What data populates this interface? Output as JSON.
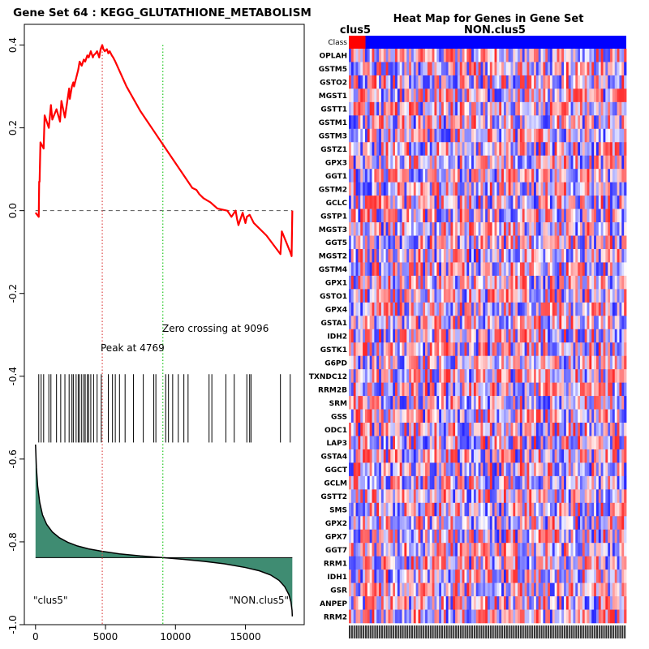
{
  "chart_data": [
    {
      "type": "line",
      "panel": "enrichment-plot",
      "title": "Gene Set  64 : KEGG_GLUTATHIONE_METABOLISM",
      "xlabel": "",
      "ylabel": "",
      "xlim": [
        -800,
        19200
      ],
      "ylim": [
        -1.0,
        0.45
      ],
      "x_ticks": [
        0,
        5000,
        10000,
        15000
      ],
      "x_tick_labels": [
        "0",
        "5000",
        "10000",
        "15000"
      ],
      "y_ticks": [
        0.4,
        0.2,
        0.0,
        -0.2,
        -0.4,
        -0.6,
        -0.8,
        -1.0
      ],
      "y_tick_labels": [
        "0.4",
        "0.2",
        "0.0",
        "-0.2",
        "-0.4",
        "-0.6",
        "-0.8",
        "-1.0"
      ],
      "es_curve": {
        "color": "#ff0000",
        "x": [
          0,
          230,
          260,
          290,
          350,
          580,
          650,
          950,
          1100,
          1200,
          1500,
          1750,
          1850,
          2100,
          2400,
          2450,
          2600,
          2700,
          2750,
          2900,
          3050,
          3150,
          3300,
          3450,
          3550,
          3700,
          3800,
          3950,
          4100,
          4150,
          4300,
          4400,
          4550,
          4650,
          4769,
          4850,
          4950,
          5100,
          5200,
          5300,
          5450,
          5550,
          5700,
          6500,
          7500,
          8500,
          9096,
          10000,
          11000,
          11200,
          11500,
          11700,
          12000,
          12500,
          13000,
          13700,
          14000,
          14300,
          14400,
          14500,
          14800,
          15000,
          15100,
          15300,
          15600,
          16500,
          17500,
          17600,
          18200,
          18300,
          18350
        ],
        "y": [
          -0.005,
          -0.015,
          0.07,
          0.07,
          0.165,
          0.15,
          0.23,
          0.2,
          0.255,
          0.22,
          0.245,
          0.215,
          0.265,
          0.225,
          0.295,
          0.27,
          0.3,
          0.31,
          0.3,
          0.32,
          0.34,
          0.36,
          0.35,
          0.365,
          0.36,
          0.375,
          0.37,
          0.385,
          0.37,
          0.375,
          0.38,
          0.385,
          0.37,
          0.39,
          0.4,
          0.39,
          0.385,
          0.39,
          0.38,
          0.385,
          0.375,
          0.37,
          0.36,
          0.3,
          0.24,
          0.19,
          0.16,
          0.115,
          0.065,
          0.055,
          0.05,
          0.04,
          0.03,
          0.02,
          0.005,
          0.0,
          -0.015,
          0.0,
          -0.02,
          -0.035,
          -0.005,
          -0.03,
          -0.015,
          -0.01,
          -0.03,
          -0.06,
          -0.105,
          -0.05,
          -0.1,
          -0.11,
          0.0
        ]
      },
      "zero_line": {
        "y": 0.0,
        "color": "#555555"
      },
      "peak": {
        "x": 4769,
        "label": "Peak at 4769",
        "color": "#e05555"
      },
      "zero_crossing": {
        "x": 9096,
        "label": "Zero crossing at 9096",
        "color": "#33cc33"
      },
      "hits": {
        "y_range": [
          -0.56,
          -0.395
        ],
        "x": [
          230,
          400,
          580,
          950,
          1100,
          1500,
          1800,
          2100,
          2400,
          2600,
          2700,
          2900,
          3050,
          3150,
          3300,
          3450,
          3550,
          3700,
          3800,
          3950,
          4150,
          4400,
          4700,
          5200,
          5500,
          5700,
          6000,
          6400,
          7000,
          7700,
          8450,
          8600,
          9300,
          9500,
          9800,
          10200,
          10600,
          10900,
          12400,
          12600,
          13600,
          14200,
          15100,
          15300,
          15400,
          17500,
          18200
        ]
      },
      "ranking_metric": {
        "color": "#3f8c72",
        "baseline": -0.838,
        "x": [
          0,
          60,
          150,
          300,
          500,
          800,
          1200,
          1700,
          2300,
          3000,
          3800,
          4769,
          6000,
          7500,
          9096,
          10500,
          12000,
          13500,
          15000,
          16000,
          16800,
          17400,
          17800,
          18100,
          18250,
          18330,
          18350
        ],
        "y": [
          -0.565,
          -0.62,
          -0.665,
          -0.705,
          -0.735,
          -0.758,
          -0.776,
          -0.79,
          -0.801,
          -0.81,
          -0.817,
          -0.823,
          -0.829,
          -0.834,
          -0.838,
          -0.842,
          -0.847,
          -0.853,
          -0.862,
          -0.87,
          -0.88,
          -0.893,
          -0.908,
          -0.927,
          -0.945,
          -0.965,
          -0.98
        ]
      },
      "annotations": {
        "left_class": "\"clus5\"",
        "right_class": "\"NON.clus5\""
      }
    },
    {
      "type": "heatmap",
      "panel": "heat-map",
      "title": "Heat Map for Genes in Gene Set",
      "class_labels": {
        "positive": "clus5",
        "negative": "NON.clus5",
        "row_label": "Class"
      },
      "class_bar": {
        "positive_color": "#ff0000",
        "negative_color": "#0000ff",
        "positive_fraction": 0.06
      },
      "colors": {
        "high": "#ff0000",
        "mid": "#ffffff",
        "low": "#0000ff"
      },
      "genes": [
        "OPLAH",
        "GSTM5",
        "GSTO2",
        "MGST1",
        "GSTT1",
        "GSTM1",
        "GSTM3",
        "GSTZ1",
        "GPX3",
        "GGT1",
        "GSTM2",
        "GCLC",
        "GSTP1",
        "MGST3",
        "GGT5",
        "MGST2",
        "GSTM4",
        "GPX1",
        "GSTO1",
        "GPX4",
        "GSTA1",
        "IDH2",
        "GSTK1",
        "G6PD",
        "TXNDC12",
        "RRM2B",
        "SRM",
        "GSS",
        "ODC1",
        "LAP3",
        "GSTA4",
        "GGCT",
        "GCLM",
        "GSTT2",
        "SMS",
        "GPX2",
        "GPX7",
        "GGT7",
        "RRM1",
        "IDH1",
        "GSR",
        "ANPEP",
        "RRM2"
      ],
      "n_samples": 120
    }
  ],
  "heatmap_title_line1": "Heat Map for Genes in Gene Set",
  "heatmap_class_positive": "clus5",
  "heatmap_class_negative": "NON.clus5"
}
